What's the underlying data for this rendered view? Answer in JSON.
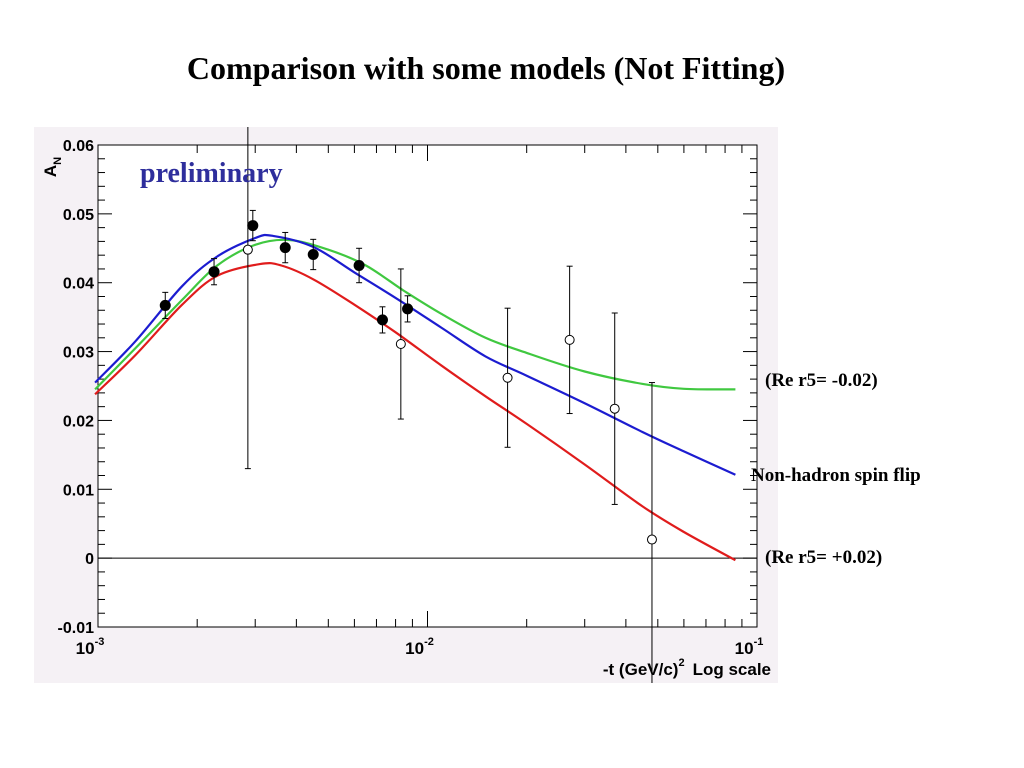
{
  "slide": {
    "title": "Comparison with some models (Not Fitting)"
  },
  "chart_data": {
    "type": "scatter",
    "xscale": "log",
    "xlim": [
      0.001,
      0.1
    ],
    "ylim": [
      -0.01,
      0.06
    ],
    "yticks": [
      "-0.01",
      "0",
      "0.01",
      "0.02",
      "0.03",
      "0.04",
      "0.05",
      "0.06"
    ],
    "xticks": [
      {
        "base": "10",
        "exp": "-3"
      },
      {
        "base": "10",
        "exp": "-2"
      },
      {
        "base": "10",
        "exp": "-1"
      }
    ],
    "ylabel": {
      "main": "A",
      "sub": "N"
    },
    "xlabel": {
      "main": "-t (GeV/c)",
      "sup": "2",
      "suffix": "Log scale"
    },
    "annotation": "preliminary",
    "zero_line": true,
    "grid": false,
    "series_filled": {
      "x": [
        0.0016,
        0.00225,
        0.00295,
        0.0037,
        0.0045,
        0.0062,
        0.0073,
        0.0087
      ],
      "y": [
        0.0367,
        0.0416,
        0.0483,
        0.0451,
        0.0441,
        0.0425,
        0.0346,
        0.0362
      ],
      "err": [
        0.0019,
        0.0019,
        0.0022,
        0.0022,
        0.0022,
        0.0025,
        0.0019,
        0.0019
      ]
    },
    "series_open": {
      "x": [
        0.00285,
        0.0083,
        0.0175,
        0.027,
        0.037,
        0.048
      ],
      "y": [
        0.0448,
        0.0311,
        0.0262,
        0.0317,
        0.0217,
        0.0027
      ],
      "err": [
        0.0318,
        0.0109,
        0.0101,
        0.0107,
        0.0139,
        0.0228
      ]
    },
    "curves": [
      {
        "color": "#40c840",
        "x": [
          0.00098,
          0.0013,
          0.0018,
          0.0023,
          0.003,
          0.0038,
          0.005,
          0.0065,
          0.0085,
          0.011,
          0.015,
          0.02,
          0.03,
          0.045,
          0.06,
          0.086
        ],
        "y": [
          0.0245,
          0.0305,
          0.0375,
          0.0425,
          0.0455,
          0.0462,
          0.0448,
          0.0425,
          0.0388,
          0.0355,
          0.032,
          0.0298,
          0.0271,
          0.0253,
          0.0246,
          0.0245
        ]
      },
      {
        "color": "#1c1cd0",
        "x": [
          0.00098,
          0.0013,
          0.0018,
          0.0023,
          0.003,
          0.0034,
          0.0045,
          0.006,
          0.008,
          0.011,
          0.015,
          0.02,
          0.03,
          0.045,
          0.06,
          0.086
        ],
        "y": [
          0.0255,
          0.0315,
          0.0395,
          0.0438,
          0.0465,
          0.0468,
          0.0452,
          0.0415,
          0.0378,
          0.0335,
          0.0293,
          0.0265,
          0.0225,
          0.0183,
          0.0155,
          0.0121
        ]
      },
      {
        "color": "#e01c1c",
        "x": [
          0.00098,
          0.0013,
          0.0018,
          0.0023,
          0.0031,
          0.0036,
          0.0045,
          0.006,
          0.008,
          0.011,
          0.015,
          0.02,
          0.03,
          0.045,
          0.06,
          0.086
        ],
        "y": [
          0.0238,
          0.0295,
          0.0368,
          0.041,
          0.0427,
          0.0425,
          0.0405,
          0.0368,
          0.0328,
          0.028,
          0.0235,
          0.0195,
          0.0136,
          0.0075,
          0.0038,
          -0.0003
        ]
      }
    ]
  },
  "labels": {
    "green": "(Re r5= -0.02)",
    "blue": "Non-hadron spin flip",
    "red": "(Re r5= +0.02)"
  }
}
